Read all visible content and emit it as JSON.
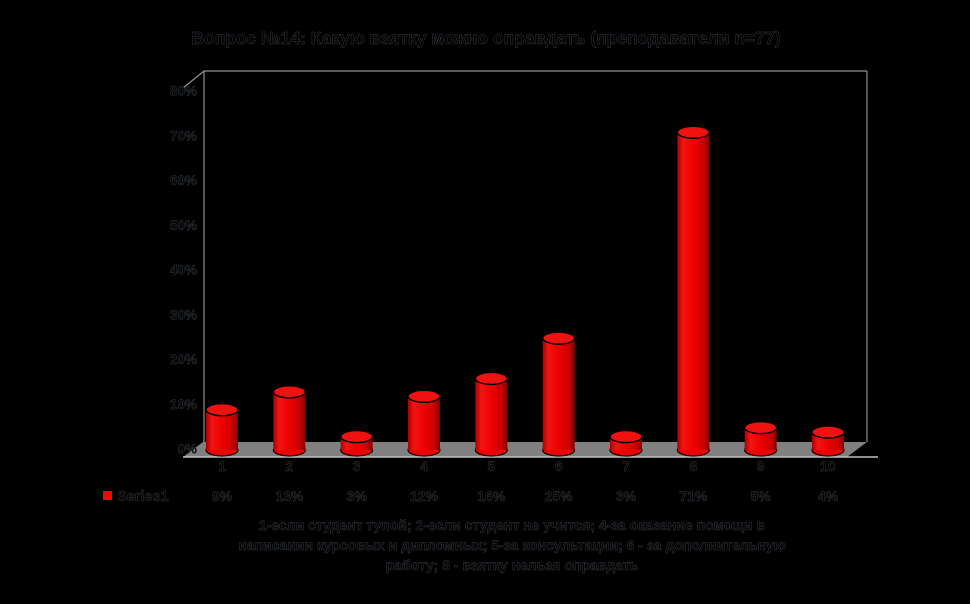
{
  "title": "Вопрос №14: Какую взятку можно оправдать (преподаватели n=77)",
  "legend": {
    "label": "Series1"
  },
  "footnote": {
    "lines": [
      "1-если студент тупой; 2-если студент не учится; 4-за оказание помощи в",
      "написании курсовых и дипломных; 5-за консультации; 6 - за дополнительную",
      "работу; 8 - взятку нельзя оправдать"
    ]
  },
  "colors": {
    "background": "#000000",
    "bar": "#ee0000",
    "bar_top": "#f01111",
    "bar_gradient": [
      "#a80000",
      "#f41414",
      "#ee0000",
      "#c90000",
      "#800000"
    ],
    "floor": "#808080",
    "axis": "#909090",
    "table_border": "#c0c0c0",
    "text": "#000000",
    "text_stroke": "#3a3f46",
    "legend_swatch": "#ff0000"
  },
  "chart_data": {
    "type": "bar",
    "subtype": "3d-cylinder",
    "title": "Вопрос №14: Какую взятку можно оправдать (преподаватели n=77)",
    "categories": [
      "1",
      "2",
      "3",
      "4",
      "5",
      "6",
      "7",
      "8",
      "9",
      "10"
    ],
    "series": [
      {
        "name": "Series1",
        "values": [
          9,
          13,
          3,
          12,
          16,
          25,
          3,
          71,
          5,
          4
        ]
      }
    ],
    "value_labels": [
      "9%",
      "13%",
      "3%",
      "12%",
      "16%",
      "25%",
      "3%",
      "71%",
      "5%",
      "4%"
    ],
    "xlabel": "",
    "ylabel": "",
    "y_ticks": [
      "0%",
      "10%",
      "20%",
      "30%",
      "40%",
      "50%",
      "60%",
      "70%",
      "80%"
    ],
    "ylim": [
      0,
      80
    ],
    "grid": false,
    "legend_position": "data-table-left",
    "data_table_shown": true,
    "bar_color": "#ee0000",
    "background_color": "#000000"
  }
}
